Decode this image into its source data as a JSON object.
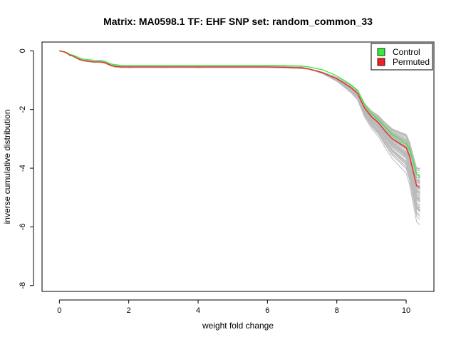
{
  "chart_data": {
    "type": "line",
    "title": "Matrix: MA0598.1 TF: EHF SNP set: random_common_33",
    "xlabel": "weight fold change",
    "ylabel": "inverse cumulative distribution",
    "xlim": [
      -0.5,
      10.8
    ],
    "ylim": [
      -8.2,
      0.3
    ],
    "x_ticks": [
      0,
      2,
      4,
      6,
      8,
      10
    ],
    "y_ticks": [
      0,
      -2,
      -4,
      -6,
      -8
    ],
    "grid": false,
    "legend_position": "top-right",
    "series": [
      {
        "name": "Control",
        "color": "#33ee33",
        "x": [
          0,
          0.15,
          0.25,
          0.3,
          0.4,
          0.5,
          0.6,
          0.7,
          0.8,
          1.0,
          1.2,
          1.3,
          1.4,
          1.5,
          1.6,
          1.8,
          2.0,
          3.0,
          4.0,
          5.0,
          6.0,
          6.5,
          7.0,
          7.2,
          7.4,
          7.6,
          7.8,
          8.0,
          8.2,
          8.4,
          8.6,
          8.7,
          8.8,
          8.9,
          9.0,
          9.2,
          9.4,
          9.6,
          9.8,
          10.0,
          10.1,
          10.2,
          10.3,
          10.4
        ],
        "y": [
          0,
          -0.03,
          -0.08,
          -0.12,
          -0.15,
          -0.2,
          -0.25,
          -0.28,
          -0.3,
          -0.32,
          -0.33,
          -0.35,
          -0.4,
          -0.45,
          -0.47,
          -0.5,
          -0.5,
          -0.5,
          -0.5,
          -0.5,
          -0.5,
          -0.5,
          -0.52,
          -0.55,
          -0.6,
          -0.65,
          -0.75,
          -0.85,
          -1.0,
          -1.15,
          -1.35,
          -1.6,
          -1.85,
          -2.0,
          -2.15,
          -2.35,
          -2.6,
          -2.85,
          -3.0,
          -3.15,
          -3.35,
          -3.75,
          -4.2,
          -4.3
        ]
      },
      {
        "name": "Permuted",
        "color": "#ee2222",
        "x": [
          0,
          0.15,
          0.25,
          0.3,
          0.4,
          0.5,
          0.6,
          0.7,
          0.8,
          1.0,
          1.2,
          1.3,
          1.4,
          1.5,
          1.6,
          1.8,
          2.0,
          3.0,
          4.0,
          5.0,
          6.0,
          6.5,
          7.0,
          7.2,
          7.4,
          7.6,
          7.8,
          8.0,
          8.2,
          8.4,
          8.6,
          8.7,
          8.8,
          8.9,
          9.0,
          9.2,
          9.4,
          9.6,
          9.8,
          10.0,
          10.1,
          10.2,
          10.3,
          10.4
        ],
        "y": [
          0,
          -0.04,
          -0.1,
          -0.15,
          -0.18,
          -0.25,
          -0.3,
          -0.33,
          -0.35,
          -0.38,
          -0.38,
          -0.4,
          -0.45,
          -0.5,
          -0.53,
          -0.55,
          -0.55,
          -0.55,
          -0.55,
          -0.55,
          -0.55,
          -0.56,
          -0.58,
          -0.62,
          -0.68,
          -0.75,
          -0.85,
          -0.95,
          -1.1,
          -1.25,
          -1.45,
          -1.7,
          -1.95,
          -2.1,
          -2.25,
          -2.45,
          -2.75,
          -3.0,
          -3.15,
          -3.3,
          -3.6,
          -4.1,
          -4.6,
          -4.65
        ]
      }
    ]
  }
}
